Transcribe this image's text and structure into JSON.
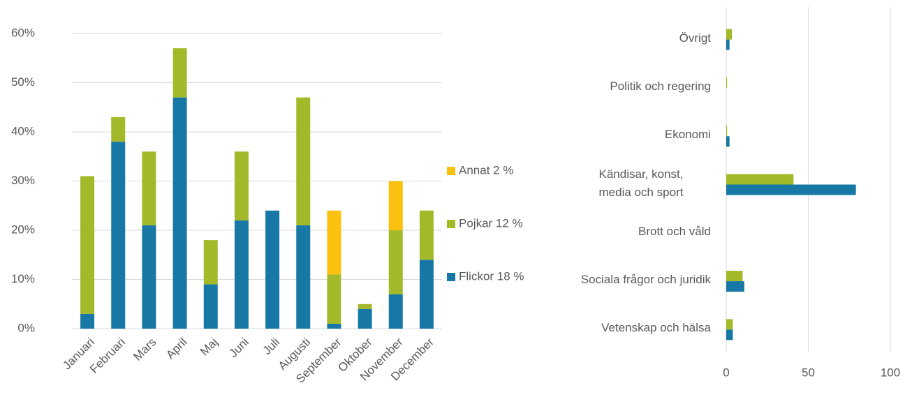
{
  "chart_data": [
    {
      "type": "stacked-bar",
      "categories": [
        "Januari",
        "Februari",
        "Mars",
        "April",
        "Maj",
        "Juni",
        "Juli",
        "Augusti",
        "September",
        "Oktober",
        "November",
        "December"
      ],
      "series": [
        {
          "name": "Flickor 18 %",
          "color": "#1778a6",
          "values": [
            3,
            38,
            21,
            47,
            9,
            22,
            24,
            21,
            1,
            4,
            7,
            14
          ]
        },
        {
          "name": "Pojkar 12 %",
          "color": "#a4b92a",
          "values": [
            28,
            5,
            15,
            10,
            9,
            14,
            0,
            26,
            10,
            1,
            13,
            10
          ]
        },
        {
          "name": "Annat 2 %",
          "color": "#fcc10f",
          "values": [
            0,
            0,
            0,
            0,
            0,
            0,
            0,
            0,
            13,
            0,
            10,
            0
          ]
        }
      ],
      "ylim": [
        0,
        60
      ],
      "yticks": [
        {
          "value": 0,
          "label": "0%"
        },
        {
          "value": 10,
          "label": "10%"
        },
        {
          "value": 20,
          "label": "20%"
        },
        {
          "value": 30,
          "label": "30%"
        },
        {
          "value": 40,
          "label": "40%"
        },
        {
          "value": 50,
          "label": "50%"
        },
        {
          "value": 60,
          "label": "60%"
        }
      ],
      "grid": true,
      "legend": "right"
    },
    {
      "type": "hbar",
      "categories": [
        "Övrigt",
        "Politik och regering",
        "Ekonomi",
        "Kändisar, konst, media och sport",
        "Brott och våld",
        "Sociala frågor och juridik",
        "Vetenskap och hälsa"
      ],
      "series": [
        {
          "color": "#a4b92a",
          "values": [
            3.5,
            0.5,
            0.5,
            41,
            0,
            10,
            4
          ]
        },
        {
          "color": "#1778a6",
          "values": [
            2,
            0,
            2,
            79,
            0,
            11,
            4
          ]
        }
      ],
      "xlim": [
        0,
        100
      ],
      "xticks": [
        0,
        50,
        100
      ],
      "grid": true
    }
  ]
}
